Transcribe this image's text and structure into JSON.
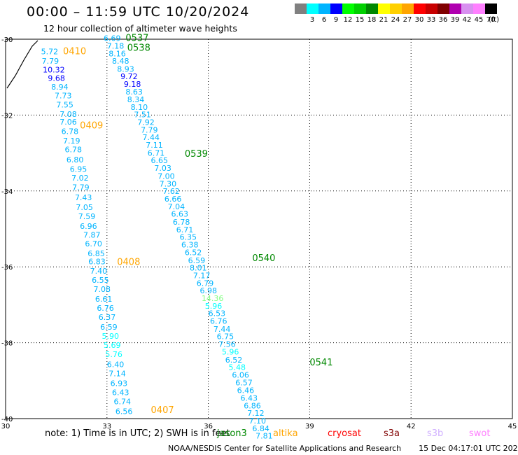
{
  "header": {
    "title": "00:00 – 11:59 UTC 10/20/2024",
    "subtitle": "12 hour collection of altimeter wave heights"
  },
  "color_scale": {
    "units": "(ft)",
    "bins": [
      {
        "label": "",
        "color": "#808080"
      },
      {
        "label": "3",
        "color": "#00ffff"
      },
      {
        "label": "6",
        "color": "#00b4ff"
      },
      {
        "label": "9",
        "color": "#0000ff"
      },
      {
        "label": "12",
        "color": "#00ff00"
      },
      {
        "label": "15",
        "color": "#00d000"
      },
      {
        "label": "18",
        "color": "#008800"
      },
      {
        "label": "21",
        "color": "#ffff00"
      },
      {
        "label": "24",
        "color": "#ffd000"
      },
      {
        "label": "27",
        "color": "#ffa500"
      },
      {
        "label": "30",
        "color": "#ff0000"
      },
      {
        "label": "33",
        "color": "#c80000"
      },
      {
        "label": "36",
        "color": "#800000"
      },
      {
        "label": "39",
        "color": "#b000b0"
      },
      {
        "label": "42",
        "color": "#d890f0"
      },
      {
        "label": "45",
        "color": "#ff80ff"
      },
      {
        "label": "70",
        "color": "#000000"
      }
    ]
  },
  "map": {
    "lon_ticks": [
      "30",
      "33",
      "36",
      "39",
      "42",
      "45"
    ],
    "lat_ticks": [
      "-30",
      "-32",
      "-34",
      "-36",
      "-38",
      "-40"
    ],
    "lon_range": [
      30,
      45
    ],
    "lat_range": [
      -30,
      -40
    ],
    "coastline_note": "small coastline segment near top-left corner"
  },
  "passes": [
    {
      "label": "0410",
      "color": "#ffa500",
      "lon": 31.7,
      "lat": -30.4
    },
    {
      "label": "0409",
      "color": "#ffa500",
      "lon": 32.2,
      "lat": -32.35
    },
    {
      "label": "0408",
      "color": "#ffa500",
      "lon": 33.3,
      "lat": -35.95
    },
    {
      "label": "0407",
      "color": "#ffa500",
      "lon": 34.3,
      "lat": -39.85
    },
    {
      "label": "0537",
      "color": "#008800",
      "lon": 33.55,
      "lat": -30.05
    },
    {
      "label": "0538",
      "color": "#008800",
      "lon": 33.6,
      "lat": -30.3
    },
    {
      "label": "0539",
      "color": "#008800",
      "lon": 35.3,
      "lat": -33.1
    },
    {
      "label": "0540",
      "color": "#008800",
      "lon": 37.3,
      "lat": -35.85
    },
    {
      "label": "0541",
      "color": "#008800",
      "lon": 39.0,
      "lat": -38.6
    }
  ],
  "tracks": [
    {
      "name": "0410-0407 track",
      "points": [
        {
          "lon": 31.05,
          "lat": -30.4,
          "value": "5.72",
          "color": "#00b4ff"
        },
        {
          "lon": 31.07,
          "lat": -30.65,
          "value": "7.79",
          "color": "#00b4ff"
        },
        {
          "lon": 31.1,
          "lat": -30.88,
          "value": "10.32",
          "color": "#0000ff"
        },
        {
          "lon": 31.25,
          "lat": -31.1,
          "value": "9.68",
          "color": "#0000ff"
        },
        {
          "lon": 31.35,
          "lat": -31.33,
          "value": "8.94",
          "color": "#00b4ff"
        },
        {
          "lon": 31.45,
          "lat": -31.56,
          "value": "7.73",
          "color": "#00b4ff"
        },
        {
          "lon": 31.5,
          "lat": -31.8,
          "value": "7.55",
          "color": "#00b4ff"
        },
        {
          "lon": 31.6,
          "lat": -32.05,
          "value": "7.08",
          "color": "#00b4ff"
        },
        {
          "lon": 31.6,
          "lat": -32.25,
          "value": "7.06",
          "color": "#00b4ff"
        },
        {
          "lon": 31.65,
          "lat": -32.5,
          "value": "6.78",
          "color": "#00b4ff"
        },
        {
          "lon": 31.7,
          "lat": -32.75,
          "value": "7.19",
          "color": "#00b4ff"
        },
        {
          "lon": 31.75,
          "lat": -32.98,
          "value": "6.78",
          "color": "#00b4ff"
        },
        {
          "lon": 31.8,
          "lat": -33.25,
          "value": "6.80",
          "color": "#00b4ff"
        },
        {
          "lon": 31.9,
          "lat": -33.5,
          "value": "6.95",
          "color": "#00b4ff"
        },
        {
          "lon": 31.95,
          "lat": -33.73,
          "value": "7.02",
          "color": "#00b4ff"
        },
        {
          "lon": 31.97,
          "lat": -33.98,
          "value": "7.79",
          "color": "#00b4ff"
        },
        {
          "lon": 32.05,
          "lat": -34.24,
          "value": "7.43",
          "color": "#00b4ff"
        },
        {
          "lon": 32.08,
          "lat": -34.5,
          "value": "7.05",
          "color": "#00b4ff"
        },
        {
          "lon": 32.15,
          "lat": -34.74,
          "value": "7.59",
          "color": "#00b4ff"
        },
        {
          "lon": 32.2,
          "lat": -35.0,
          "value": "6.96",
          "color": "#00b4ff"
        },
        {
          "lon": 32.3,
          "lat": -35.23,
          "value": "7.87",
          "color": "#00b4ff"
        },
        {
          "lon": 32.35,
          "lat": -35.46,
          "value": "6.70",
          "color": "#00b4ff"
        },
        {
          "lon": 32.43,
          "lat": -35.72,
          "value": "6.85",
          "color": "#00b4ff"
        },
        {
          "lon": 32.45,
          "lat": -35.93,
          "value": "6.83",
          "color": "#00b4ff"
        },
        {
          "lon": 32.5,
          "lat": -36.18,
          "value": "7.40",
          "color": "#00b4ff"
        },
        {
          "lon": 32.55,
          "lat": -36.42,
          "value": "6.55",
          "color": "#00b4ff"
        },
        {
          "lon": 32.6,
          "lat": -36.66,
          "value": "7.08",
          "color": "#00b4ff"
        },
        {
          "lon": 32.65,
          "lat": -36.92,
          "value": "6.61",
          "color": "#00b4ff"
        },
        {
          "lon": 32.7,
          "lat": -37.16,
          "value": "6.76",
          "color": "#00b4ff"
        },
        {
          "lon": 32.75,
          "lat": -37.4,
          "value": "6.37",
          "color": "#00b4ff"
        },
        {
          "lon": 32.8,
          "lat": -37.66,
          "value": "6.59",
          "color": "#00b4ff"
        },
        {
          "lon": 32.85,
          "lat": -37.9,
          "value": "5.90",
          "color": "#00ffff"
        },
        {
          "lon": 32.9,
          "lat": -38.14,
          "value": "5.69",
          "color": "#00ffff"
        },
        {
          "lon": 32.95,
          "lat": -38.38,
          "value": "5.76",
          "color": "#00ffff"
        },
        {
          "lon": 33.0,
          "lat": -38.64,
          "value": "6.40",
          "color": "#00b4ff"
        },
        {
          "lon": 33.05,
          "lat": -38.88,
          "value": "7.14",
          "color": "#00b4ff"
        },
        {
          "lon": 33.1,
          "lat": -39.14,
          "value": "6.93",
          "color": "#00b4ff"
        },
        {
          "lon": 33.15,
          "lat": -39.38,
          "value": "6.43",
          "color": "#00b4ff"
        },
        {
          "lon": 33.2,
          "lat": -39.62,
          "value": "6.74",
          "color": "#00b4ff"
        },
        {
          "lon": 33.25,
          "lat": -39.88,
          "value": "6.56",
          "color": "#00b4ff"
        }
      ]
    },
    {
      "name": "0537-0541 track",
      "points": [
        {
          "lon": 32.9,
          "lat": -30.05,
          "value": "6.69",
          "color": "#00b4ff"
        },
        {
          "lon": 33.0,
          "lat": -30.25,
          "value": "7.18",
          "color": "#00b4ff"
        },
        {
          "lon": 33.05,
          "lat": -30.45,
          "value": "8.16",
          "color": "#00b4ff"
        },
        {
          "lon": 33.15,
          "lat": -30.65,
          "value": "8.48",
          "color": "#00b4ff"
        },
        {
          "lon": 33.3,
          "lat": -30.86,
          "value": "8.93",
          "color": "#00b4ff"
        },
        {
          "lon": 33.4,
          "lat": -31.05,
          "value": "9.72",
          "color": "#0000ff"
        },
        {
          "lon": 33.5,
          "lat": -31.25,
          "value": "9.18",
          "color": "#0000ff"
        },
        {
          "lon": 33.55,
          "lat": -31.46,
          "value": "8.63",
          "color": "#00b4ff"
        },
        {
          "lon": 33.6,
          "lat": -31.66,
          "value": "8.34",
          "color": "#00b4ff"
        },
        {
          "lon": 33.7,
          "lat": -31.86,
          "value": "8.10",
          "color": "#00b4ff"
        },
        {
          "lon": 33.8,
          "lat": -32.06,
          "value": "7.51",
          "color": "#00b4ff"
        },
        {
          "lon": 33.9,
          "lat": -32.26,
          "value": "7.92",
          "color": "#00b4ff"
        },
        {
          "lon": 34.0,
          "lat": -32.46,
          "value": "7.79",
          "color": "#00b4ff"
        },
        {
          "lon": 34.05,
          "lat": -32.66,
          "value": "7.44",
          "color": "#00b4ff"
        },
        {
          "lon": 34.15,
          "lat": -32.86,
          "value": "7.11",
          "color": "#00b4ff"
        },
        {
          "lon": 34.2,
          "lat": -33.07,
          "value": "6.71",
          "color": "#00b4ff"
        },
        {
          "lon": 34.3,
          "lat": -33.27,
          "value": "6.65",
          "color": "#00b4ff"
        },
        {
          "lon": 34.4,
          "lat": -33.47,
          "value": "7.03",
          "color": "#00b4ff"
        },
        {
          "lon": 34.5,
          "lat": -33.68,
          "value": "7.00",
          "color": "#00b4ff"
        },
        {
          "lon": 34.55,
          "lat": -33.88,
          "value": "7.30",
          "color": "#00b4ff"
        },
        {
          "lon": 34.65,
          "lat": -34.08,
          "value": "7.62",
          "color": "#00b4ff"
        },
        {
          "lon": 34.7,
          "lat": -34.28,
          "value": "6.66",
          "color": "#00b4ff"
        },
        {
          "lon": 34.8,
          "lat": -34.48,
          "value": "7.04",
          "color": "#00b4ff"
        },
        {
          "lon": 34.9,
          "lat": -34.68,
          "value": "6.63",
          "color": "#00b4ff"
        },
        {
          "lon": 34.95,
          "lat": -34.89,
          "value": "6.78",
          "color": "#00b4ff"
        },
        {
          "lon": 35.05,
          "lat": -35.09,
          "value": "6.71",
          "color": "#00b4ff"
        },
        {
          "lon": 35.15,
          "lat": -35.29,
          "value": "6.35",
          "color": "#00b4ff"
        },
        {
          "lon": 35.2,
          "lat": -35.49,
          "value": "6.38",
          "color": "#00b4ff"
        },
        {
          "lon": 35.3,
          "lat": -35.69,
          "value": "6.52",
          "color": "#00b4ff"
        },
        {
          "lon": 35.4,
          "lat": -35.9,
          "value": "6.59",
          "color": "#00b4ff"
        },
        {
          "lon": 35.45,
          "lat": -36.1,
          "value": "8.01",
          "color": "#00b4ff"
        },
        {
          "lon": 35.55,
          "lat": -36.3,
          "value": "7.17",
          "color": "#00b4ff"
        },
        {
          "lon": 35.65,
          "lat": -36.5,
          "value": "6.79",
          "color": "#00b4ff"
        },
        {
          "lon": 35.75,
          "lat": -36.7,
          "value": "6.98",
          "color": "#00b4ff"
        },
        {
          "lon": 35.8,
          "lat": -36.9,
          "value": "14.36",
          "color": "#80ff80"
        },
        {
          "lon": 35.9,
          "lat": -37.1,
          "value": "5.96",
          "color": "#00ffff"
        },
        {
          "lon": 36.0,
          "lat": -37.3,
          "value": "6.53",
          "color": "#00b4ff"
        },
        {
          "lon": 36.05,
          "lat": -37.5,
          "value": "6.76",
          "color": "#00b4ff"
        },
        {
          "lon": 36.15,
          "lat": -37.71,
          "value": "7.44",
          "color": "#00b4ff"
        },
        {
          "lon": 36.25,
          "lat": -37.91,
          "value": "6.75",
          "color": "#00b4ff"
        },
        {
          "lon": 36.3,
          "lat": -38.11,
          "value": "7.56",
          "color": "#00b4ff"
        },
        {
          "lon": 36.4,
          "lat": -38.31,
          "value": "5.96",
          "color": "#00ffff"
        },
        {
          "lon": 36.5,
          "lat": -38.52,
          "value": "6.52",
          "color": "#00b4ff"
        },
        {
          "lon": 36.6,
          "lat": -38.72,
          "value": "5.48",
          "color": "#00ffff"
        },
        {
          "lon": 36.7,
          "lat": -38.92,
          "value": "6.06",
          "color": "#00b4ff"
        },
        {
          "lon": 36.8,
          "lat": -39.12,
          "value": "6.57",
          "color": "#00b4ff"
        },
        {
          "lon": 36.85,
          "lat": -39.33,
          "value": "6.46",
          "color": "#00b4ff"
        },
        {
          "lon": 36.95,
          "lat": -39.53,
          "value": "6.43",
          "color": "#00b4ff"
        },
        {
          "lon": 37.05,
          "lat": -39.73,
          "value": "6.86",
          "color": "#00b4ff"
        },
        {
          "lon": 37.15,
          "lat": -39.93,
          "value": "7.12",
          "color": "#00b4ff"
        },
        {
          "lon": 37.2,
          "lat": -40.13,
          "value": "7.10",
          "color": "#00b4ff"
        },
        {
          "lon": 37.3,
          "lat": -40.33,
          "value": "6.84",
          "color": "#00b4ff"
        },
        {
          "lon": 37.4,
          "lat": -40.53,
          "value": "7.81",
          "color": "#00b4ff"
        }
      ]
    }
  ],
  "footer": {
    "note": "note:  1) Time is in UTC; 2) SWH is in feet",
    "satellites": [
      {
        "label": "jason3",
        "color": "#008800"
      },
      {
        "label": "altika",
        "color": "#ffa500"
      },
      {
        "label": "cryosat",
        "color": "#ff0000"
      },
      {
        "label": "s3a",
        "color": "#800000"
      },
      {
        "label": "s3b",
        "color": "#d0b0ff"
      },
      {
        "label": "swot",
        "color": "#ff80ff"
      }
    ],
    "credit": "NOAA/NESDIS Center for Satellite Applications and Research",
    "generated": "15 Dec 04:17:01 UTC 2024"
  }
}
